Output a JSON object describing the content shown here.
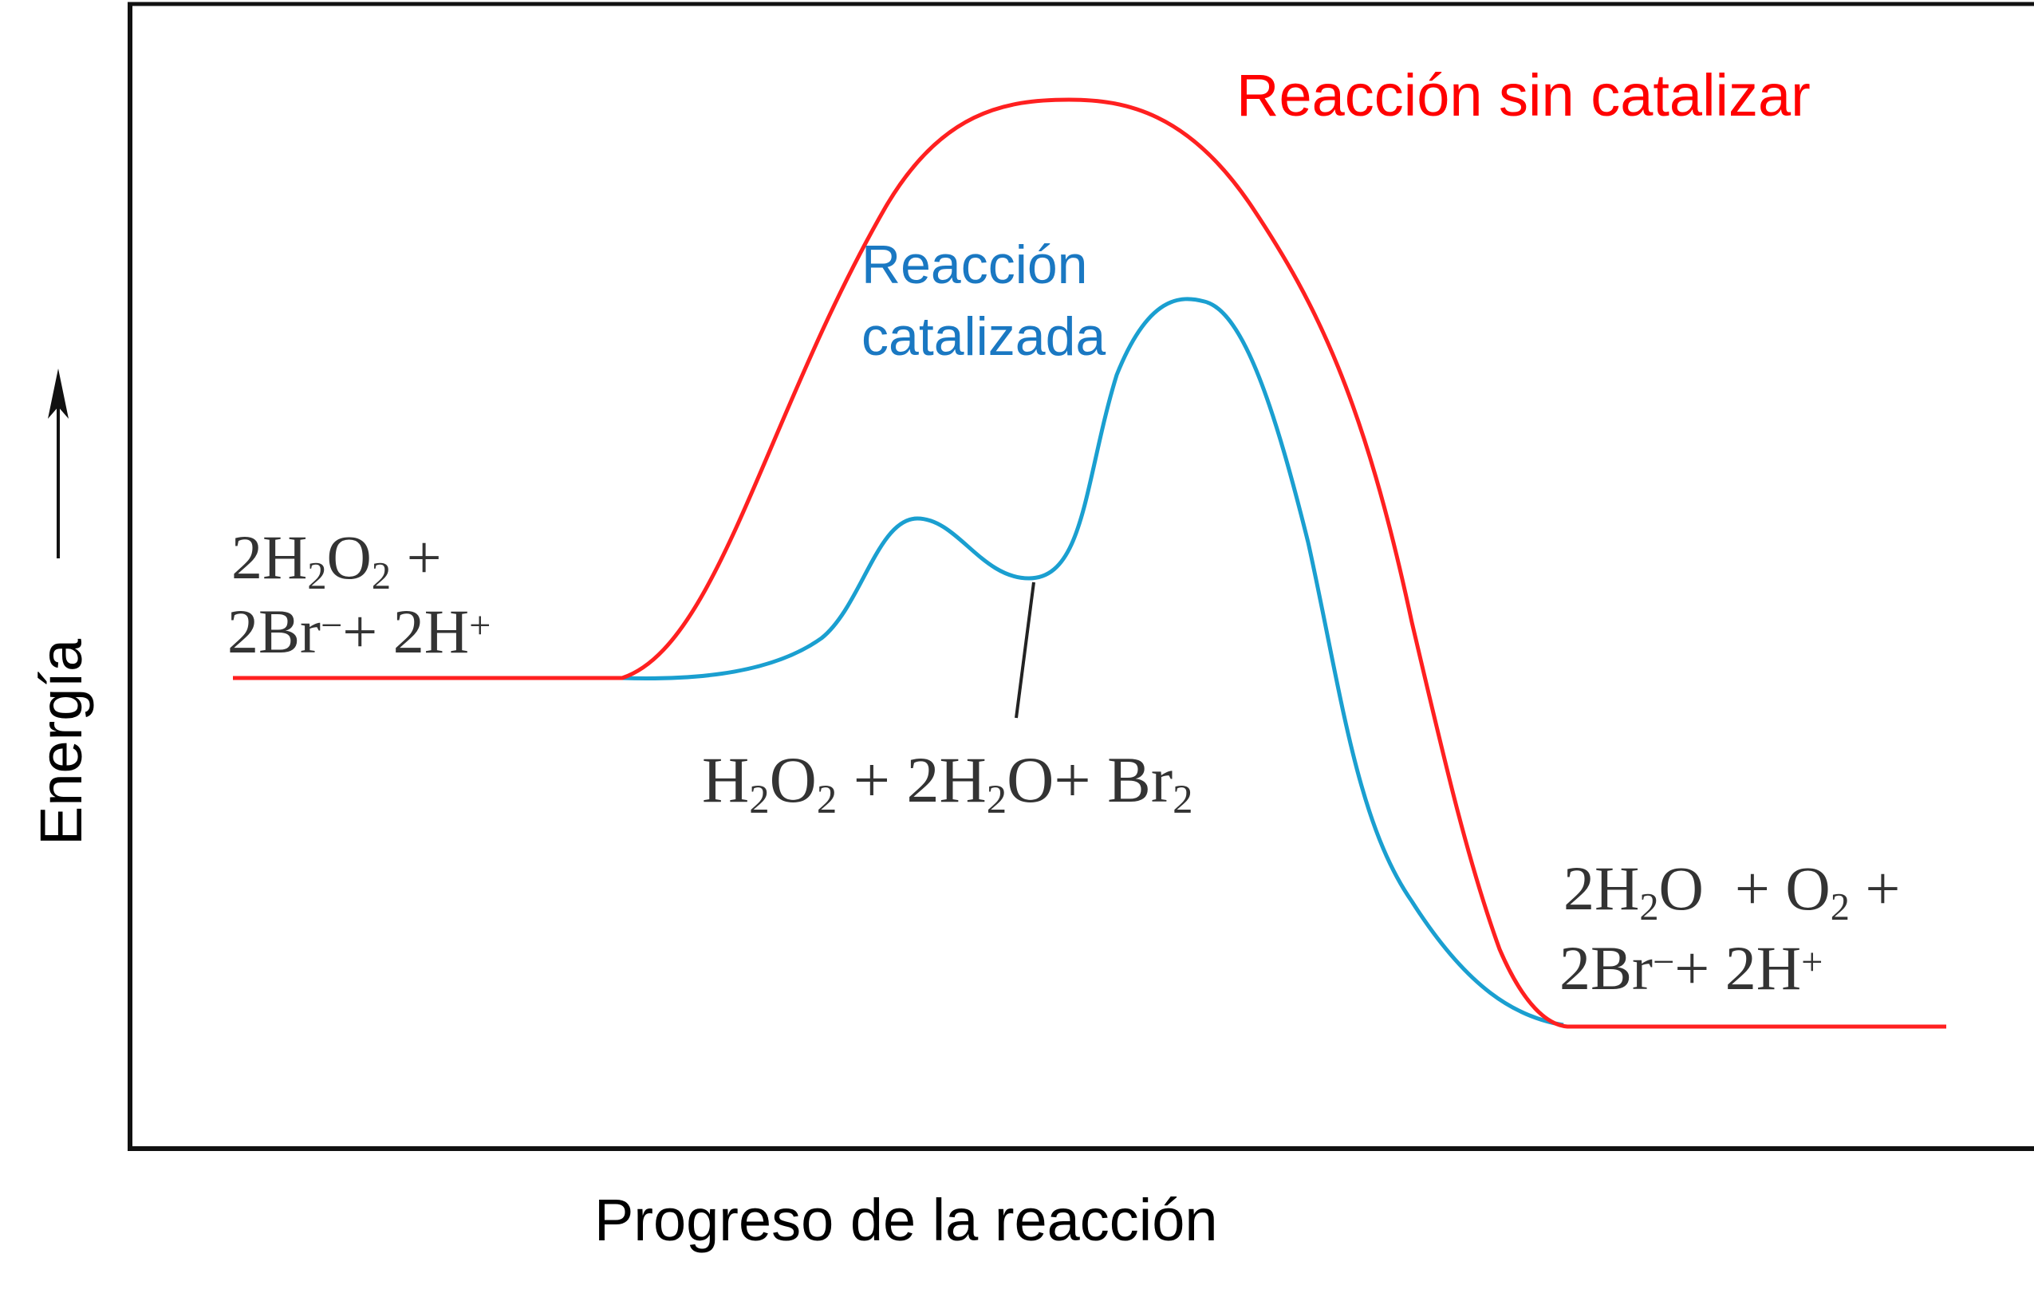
{
  "labels": {
    "uncatalyzed": "Reacción sin catalizar",
    "catalyzed_line1": "Reacción",
    "catalyzed_line2": "catalizada",
    "x_axis": "Progreso de la reacción",
    "y_axis": "Energía"
  },
  "species": {
    "reactants": {
      "line1": [
        {
          "t": "2H",
          "s": "n"
        },
        {
          "t": "2",
          "s": "sub"
        },
        {
          "t": "O",
          "s": "n"
        },
        {
          "t": "2",
          "s": "sub"
        },
        {
          "t": " +",
          "s": "n"
        }
      ],
      "line2": [
        {
          "t": "2Br",
          "s": "n"
        },
        {
          "t": "−",
          "s": "sup"
        },
        {
          "t": "+ 2H",
          "s": "n"
        },
        {
          "t": "+",
          "s": "sup"
        }
      ]
    },
    "intermediate": {
      "line1": [
        {
          "t": "H",
          "s": "n"
        },
        {
          "t": "2",
          "s": "sub"
        },
        {
          "t": "O",
          "s": "n"
        },
        {
          "t": "2",
          "s": "sub"
        },
        {
          "t": " + 2H",
          "s": "n"
        },
        {
          "t": "2",
          "s": "sub"
        },
        {
          "t": "O+ Br",
          "s": "n"
        },
        {
          "t": "2",
          "s": "sub"
        }
      ]
    },
    "products": {
      "line1": [
        {
          "t": "2H",
          "s": "n"
        },
        {
          "t": "2",
          "s": "sub"
        },
        {
          "t": "O  + O",
          "s": "n"
        },
        {
          "t": "2",
          "s": "sub"
        },
        {
          "t": " +",
          "s": "n"
        }
      ],
      "line2": [
        {
          "t": "2Br",
          "s": "n"
        },
        {
          "t": "−",
          "s": "sup"
        },
        {
          "t": "+ 2H",
          "s": "n"
        },
        {
          "t": "+",
          "s": "sup"
        }
      ]
    }
  },
  "colors": {
    "uncatalyzed": "#ff2020",
    "catalyzed": "#1a9fd0",
    "uncatalyzed_label": "#ff0000",
    "catalyzed_label": "#1a78c2",
    "axes": "#111111",
    "species_text": "#333333"
  }
}
